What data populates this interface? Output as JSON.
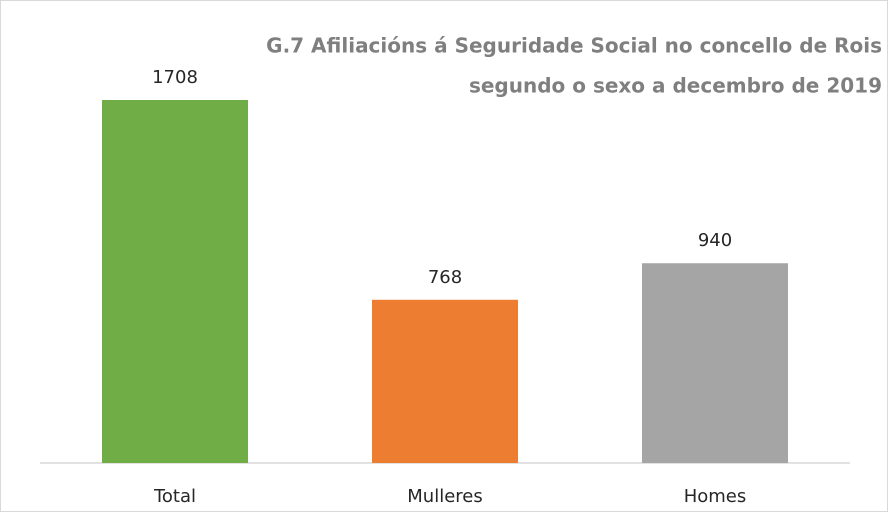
{
  "chart_data": {
    "type": "bar",
    "title": [
      "G.7 Afiliacións á Seguridade Social no concello de Rois",
      "segundo o sexo a decembro de 2019"
    ],
    "categories": [
      "Total",
      "Mulleres",
      "Homes"
    ],
    "values": [
      1708,
      768,
      940
    ],
    "colors": [
      "#70ad47",
      "#ed7d31",
      "#a5a5a5"
    ]
  }
}
